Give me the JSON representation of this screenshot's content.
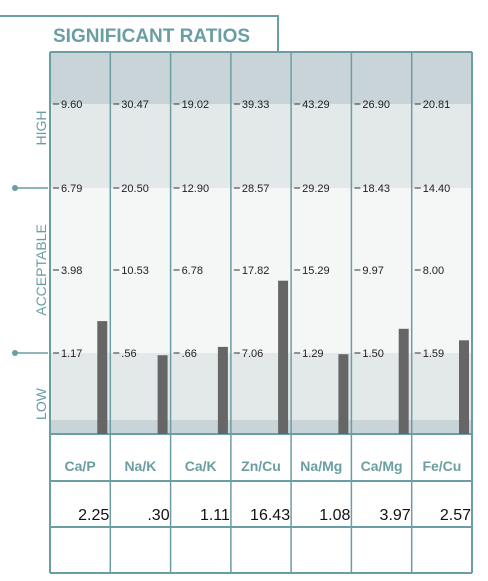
{
  "chart_data": {
    "type": "bar",
    "title": "SIGNIFICANT RATIOS",
    "zones": [
      "HIGH",
      "ACCEPTABLE",
      "LOW"
    ],
    "categories": [
      "Ca/P",
      "Na/K",
      "Ca/K",
      "Zn/Cu",
      "Na/Mg",
      "Ca/Mg",
      "Fe/Cu"
    ],
    "value_labels": [
      "2.25",
      ".30",
      "1.11",
      "16.43",
      "1.08",
      "3.97",
      "2.57"
    ],
    "values": [
      2.25,
      0.3,
      1.11,
      16.43,
      1.08,
      3.97,
      2.57
    ],
    "tick_labels": [
      [
        "9.60",
        "6.79",
        "3.98",
        "1.17"
      ],
      [
        "30.47",
        "20.50",
        "10.53",
        ".56"
      ],
      [
        "19.02",
        "12.90",
        "6.78",
        ".66"
      ],
      [
        "39.33",
        "28.57",
        "17.82",
        "7.06"
      ],
      [
        "43.29",
        "29.29",
        "15.29",
        "1.29"
      ],
      [
        "26.90",
        "18.43",
        "9.97",
        "1.50"
      ],
      [
        "20.81",
        "14.40",
        "8.00",
        "1.59"
      ]
    ],
    "tick_values": [
      [
        9.6,
        6.79,
        3.98,
        1.17
      ],
      [
        30.47,
        20.5,
        10.53,
        0.56
      ],
      [
        19.02,
        12.9,
        6.78,
        0.66
      ],
      [
        39.33,
        28.57,
        17.82,
        7.06
      ],
      [
        43.29,
        29.29,
        15.29,
        1.29
      ],
      [
        26.9,
        18.43,
        9.97,
        1.5
      ],
      [
        20.81,
        14.4,
        8.0,
        1.59
      ]
    ],
    "colors": {
      "frame": "#6a9ea3",
      "band_top": "#c8d4d8",
      "band_high": "#e3e8e9",
      "band_mid": "#f5f6f6",
      "band_low": "#e3e8e9",
      "band_bottom": "#c8d4d8",
      "bar": "#666666",
      "text": "#222222"
    }
  }
}
